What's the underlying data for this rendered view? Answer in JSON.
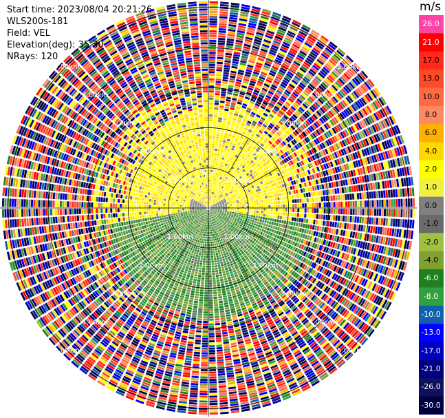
{
  "header": {
    "start_time": "Start time: 2023/08/04 20:21:26",
    "instrument": "WLS200s-181",
    "field": "Field: VEL",
    "elevation": "Elevation(deg): 35.30",
    "nrays": "NRays: 120"
  },
  "colorbar": {
    "unit": "m/s",
    "ticks": [
      "26.0",
      "21.0",
      "17.0",
      "13.0",
      "10.0",
      "8.0",
      "6.0",
      "4.0",
      "2.0",
      "1.0",
      "0.0",
      "-1.0",
      "-2.0",
      "-4.0",
      "-6.0",
      "-8.0",
      "-10.0",
      "-13.0",
      "-17.0",
      "-21.0",
      "-26.0",
      "-30.0"
    ],
    "colors": [
      "#ff44a8",
      "#ff0000",
      "#ff2a1a",
      "#ff4a2a",
      "#ff6a45",
      "#ff8a60",
      "#ffb000",
      "#ffd800",
      "#ffff00",
      "#f0f040",
      "#808080",
      "#6a6a6a",
      "#a0c040",
      "#80a030",
      "#208020",
      "#30a040",
      "#1060b0",
      "#0000ff",
      "#0000c0",
      "#000080",
      "#101060",
      "#000040"
    ]
  },
  "chart_data": {
    "type": "heatmap",
    "title": "",
    "field": "VEL",
    "unit": "m/s",
    "nrays": 120,
    "elevation_deg": 35.3,
    "range_rings_km": [
      1.0,
      2.0,
      3.0,
      4.0,
      5.0
    ],
    "ring_labels": [
      "1.00km",
      "2.00km",
      "3.00km",
      "4.00km",
      "5.00km"
    ],
    "max_range_km": 5.2,
    "azimuth_lines_deg": [
      0,
      30,
      60,
      90,
      120,
      150,
      180,
      210,
      240,
      270,
      300,
      330
    ],
    "velocity_range": [
      -30.0,
      26.0
    ],
    "regions": [
      {
        "description_value": "near range north half",
        "range_km": [
          0.0,
          2.6
        ],
        "azimuth_deg": [
          -100,
          100
        ],
        "velocity_approx": 3.0
      },
      {
        "description_value": "near range south half",
        "range_km": [
          0.0,
          2.8
        ],
        "azimuth_deg": [
          100,
          260
        ],
        "velocity_approx": -4.0
      },
      {
        "description_value": "far range noise",
        "range_km": [
          2.6,
          5.2
        ],
        "azimuth_deg": [
          0,
          360
        ],
        "velocity_approx": "random"
      }
    ]
  }
}
